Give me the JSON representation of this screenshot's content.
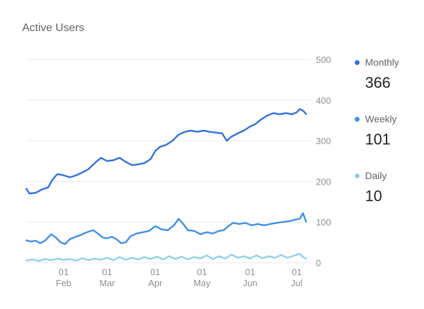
{
  "title": "Active Users",
  "colors": {
    "monthly": "#2f6fe0",
    "weekly": "#3d8fe8",
    "daily": "#8fd0e8",
    "grid": "#e8eaed",
    "tick": "#8a8f94"
  },
  "legend": [
    {
      "label": "Monthly",
      "value": "366",
      "color": "#2f6fe0"
    },
    {
      "label": "Weekly",
      "value": "101",
      "color": "#3d8fe8"
    },
    {
      "label": "Daily",
      "value": "10",
      "color": "#8fd0e8"
    }
  ],
  "chart_data": {
    "type": "line",
    "title": "Active Users",
    "y_axis_position": "right",
    "ylim": [
      0,
      500
    ],
    "yticks": [
      0,
      100,
      200,
      300,
      400,
      500
    ],
    "grid": true,
    "legend_position": "right",
    "x_range": [
      "2019-01-08",
      "2019-07-08"
    ],
    "x_ticks": [
      {
        "date": "2019-02-01",
        "day": "01",
        "month": "Feb"
      },
      {
        "date": "2019-03-01",
        "day": "01",
        "month": "Mar"
      },
      {
        "date": "2019-04-01",
        "day": "01",
        "month": "Apr"
      },
      {
        "date": "2019-05-01",
        "day": "01",
        "month": "May"
      },
      {
        "date": "2019-06-01",
        "day": "01",
        "month": "Jun"
      },
      {
        "date": "2019-07-01",
        "day": "01",
        "month": "Jul"
      }
    ],
    "series": [
      {
        "name": "Monthly",
        "color": "#2f6fe0",
        "points": [
          [
            "2019-01-08",
            182
          ],
          [
            "2019-01-10",
            170
          ],
          [
            "2019-01-14",
            172
          ],
          [
            "2019-01-18",
            180
          ],
          [
            "2019-01-22",
            185
          ],
          [
            "2019-01-25",
            205
          ],
          [
            "2019-01-28",
            218
          ],
          [
            "2019-02-01",
            215
          ],
          [
            "2019-02-05",
            210
          ],
          [
            "2019-02-09",
            215
          ],
          [
            "2019-02-13",
            222
          ],
          [
            "2019-02-17",
            230
          ],
          [
            "2019-02-21",
            245
          ],
          [
            "2019-02-25",
            258
          ],
          [
            "2019-03-01",
            250
          ],
          [
            "2019-03-05",
            252
          ],
          [
            "2019-03-09",
            258
          ],
          [
            "2019-03-13",
            248
          ],
          [
            "2019-03-17",
            240
          ],
          [
            "2019-03-21",
            242
          ],
          [
            "2019-03-25",
            245
          ],
          [
            "2019-03-29",
            255
          ],
          [
            "2019-04-01",
            275
          ],
          [
            "2019-04-04",
            285
          ],
          [
            "2019-04-08",
            290
          ],
          [
            "2019-04-12",
            300
          ],
          [
            "2019-04-16",
            315
          ],
          [
            "2019-04-20",
            322
          ],
          [
            "2019-04-24",
            325
          ],
          [
            "2019-04-28",
            322
          ],
          [
            "2019-05-02",
            325
          ],
          [
            "2019-05-06",
            322
          ],
          [
            "2019-05-10",
            320
          ],
          [
            "2019-05-14",
            318
          ],
          [
            "2019-05-17",
            300
          ],
          [
            "2019-05-20",
            310
          ],
          [
            "2019-05-24",
            318
          ],
          [
            "2019-05-28",
            325
          ],
          [
            "2019-06-01",
            335
          ],
          [
            "2019-06-04",
            340
          ],
          [
            "2019-06-08",
            352
          ],
          [
            "2019-06-12",
            362
          ],
          [
            "2019-06-16",
            368
          ],
          [
            "2019-06-20",
            365
          ],
          [
            "2019-06-24",
            368
          ],
          [
            "2019-06-28",
            365
          ],
          [
            "2019-07-01",
            370
          ],
          [
            "2019-07-03",
            378
          ],
          [
            "2019-07-05",
            374
          ],
          [
            "2019-07-07",
            366
          ]
        ]
      },
      {
        "name": "Weekly",
        "color": "#3d8fe8",
        "points": [
          [
            "2019-01-08",
            55
          ],
          [
            "2019-01-11",
            52
          ],
          [
            "2019-01-14",
            54
          ],
          [
            "2019-01-17",
            48
          ],
          [
            "2019-01-20",
            54
          ],
          [
            "2019-01-24",
            70
          ],
          [
            "2019-01-27",
            62
          ],
          [
            "2019-01-30",
            50
          ],
          [
            "2019-02-02",
            46
          ],
          [
            "2019-02-05",
            58
          ],
          [
            "2019-02-09",
            64
          ],
          [
            "2019-02-12",
            68
          ],
          [
            "2019-02-16",
            75
          ],
          [
            "2019-02-20",
            80
          ],
          [
            "2019-02-23",
            72
          ],
          [
            "2019-02-26",
            62
          ],
          [
            "2019-03-01",
            60
          ],
          [
            "2019-03-04",
            64
          ],
          [
            "2019-03-07",
            58
          ],
          [
            "2019-03-10",
            48
          ],
          [
            "2019-03-13",
            50
          ],
          [
            "2019-03-16",
            65
          ],
          [
            "2019-03-20",
            72
          ],
          [
            "2019-03-24",
            75
          ],
          [
            "2019-03-28",
            78
          ],
          [
            "2019-04-01",
            90
          ],
          [
            "2019-04-05",
            82
          ],
          [
            "2019-04-09",
            80
          ],
          [
            "2019-04-13",
            92
          ],
          [
            "2019-04-16",
            108
          ],
          [
            "2019-04-19",
            95
          ],
          [
            "2019-04-22",
            80
          ],
          [
            "2019-04-26",
            78
          ],
          [
            "2019-04-30",
            70
          ],
          [
            "2019-05-04",
            75
          ],
          [
            "2019-05-08",
            72
          ],
          [
            "2019-05-12",
            78
          ],
          [
            "2019-05-15",
            80
          ],
          [
            "2019-05-18",
            90
          ],
          [
            "2019-05-21",
            98
          ],
          [
            "2019-05-25",
            95
          ],
          [
            "2019-05-29",
            98
          ],
          [
            "2019-06-02",
            92
          ],
          [
            "2019-06-06",
            95
          ],
          [
            "2019-06-10",
            92
          ],
          [
            "2019-06-14",
            95
          ],
          [
            "2019-06-18",
            98
          ],
          [
            "2019-06-22",
            100
          ],
          [
            "2019-06-26",
            102
          ],
          [
            "2019-06-30",
            106
          ],
          [
            "2019-07-03",
            108
          ],
          [
            "2019-07-05",
            122
          ],
          [
            "2019-07-07",
            101
          ]
        ]
      },
      {
        "name": "Daily",
        "color": "#8fd0e8",
        "points": [
          [
            "2019-01-08",
            5
          ],
          [
            "2019-01-12",
            8
          ],
          [
            "2019-01-16",
            4
          ],
          [
            "2019-01-20",
            9
          ],
          [
            "2019-01-24",
            6
          ],
          [
            "2019-01-28",
            10
          ],
          [
            "2019-02-01",
            7
          ],
          [
            "2019-02-05",
            9
          ],
          [
            "2019-02-09",
            5
          ],
          [
            "2019-02-13",
            11
          ],
          [
            "2019-02-17",
            6
          ],
          [
            "2019-02-21",
            10
          ],
          [
            "2019-02-25",
            7
          ],
          [
            "2019-03-01",
            12
          ],
          [
            "2019-03-05",
            6
          ],
          [
            "2019-03-09",
            14
          ],
          [
            "2019-03-13",
            7
          ],
          [
            "2019-03-17",
            12
          ],
          [
            "2019-03-21",
            8
          ],
          [
            "2019-03-25",
            14
          ],
          [
            "2019-03-29",
            9
          ],
          [
            "2019-04-02",
            15
          ],
          [
            "2019-04-06",
            8
          ],
          [
            "2019-04-10",
            16
          ],
          [
            "2019-04-14",
            9
          ],
          [
            "2019-04-18",
            15
          ],
          [
            "2019-04-22",
            8
          ],
          [
            "2019-04-26",
            14
          ],
          [
            "2019-04-30",
            10
          ],
          [
            "2019-05-04",
            18
          ],
          [
            "2019-05-08",
            9
          ],
          [
            "2019-05-12",
            16
          ],
          [
            "2019-05-16",
            10
          ],
          [
            "2019-05-20",
            20
          ],
          [
            "2019-05-24",
            12
          ],
          [
            "2019-05-28",
            16
          ],
          [
            "2019-06-01",
            10
          ],
          [
            "2019-06-05",
            18
          ],
          [
            "2019-06-09",
            11
          ],
          [
            "2019-06-13",
            16
          ],
          [
            "2019-06-17",
            12
          ],
          [
            "2019-06-21",
            19
          ],
          [
            "2019-06-25",
            12
          ],
          [
            "2019-06-29",
            17
          ],
          [
            "2019-07-03",
            22
          ],
          [
            "2019-07-05",
            14
          ],
          [
            "2019-07-07",
            10
          ]
        ]
      }
    ]
  }
}
